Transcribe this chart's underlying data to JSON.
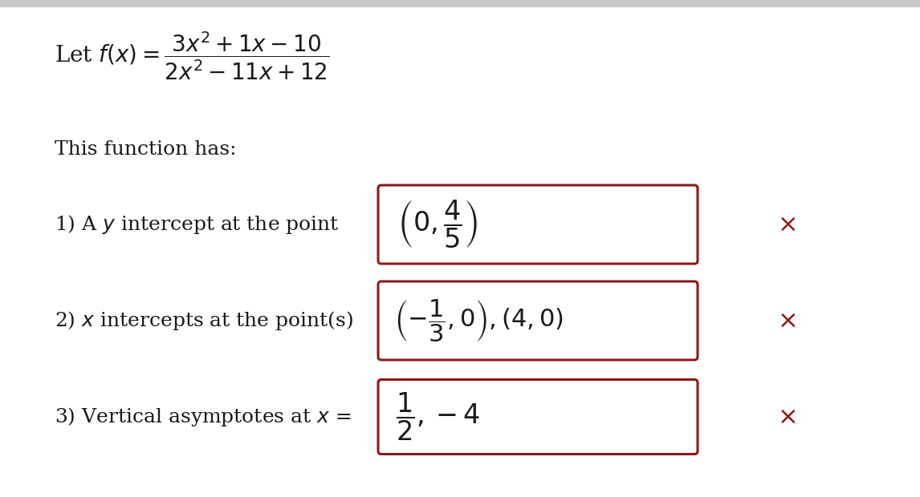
{
  "bg_top_bar": "#d0d0d0",
  "bg_color": "#ffffff",
  "box_color": "#8b1a1a",
  "x_color": "#8b1a1a",
  "text_color": "#1a1a1a",
  "fontsize_formula": 20,
  "fontsize_label": 18,
  "fontsize_answer": 20,
  "top_bar_height": 0.04
}
